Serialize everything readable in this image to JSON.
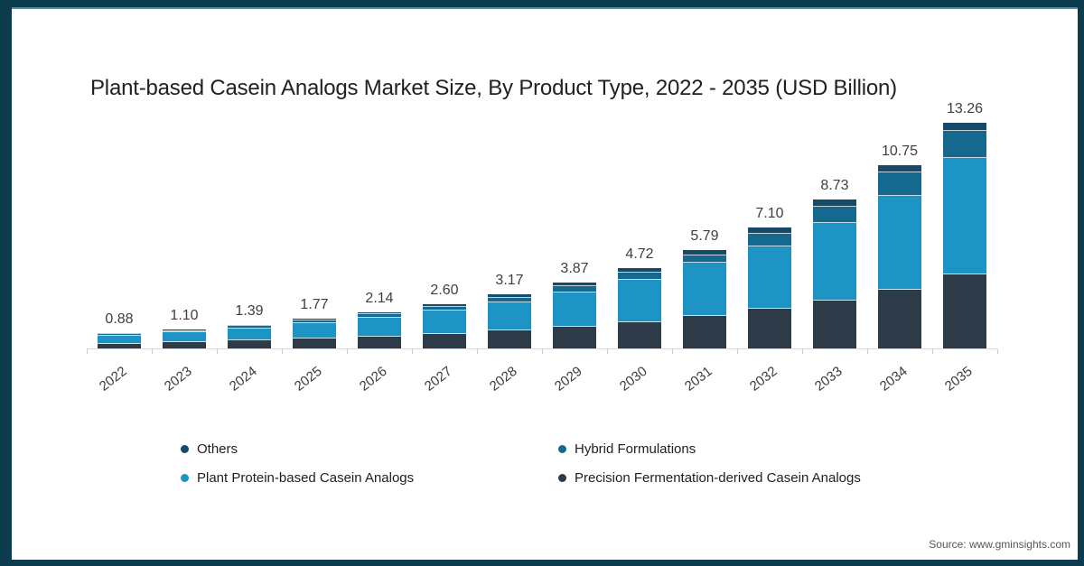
{
  "title": "Plant-based Casein Analogs Market Size, By Product Type, 2022 - 2035 (USD Billion)",
  "source": {
    "label": "Source: www.gminsights.com"
  },
  "frame": {
    "border_color": "#0e3c4f",
    "background": "#ffffff"
  },
  "legend": [
    {
      "label": "Others",
      "color": "#154a68"
    },
    {
      "label": "Hybrid Formulations",
      "color": "#15698f"
    },
    {
      "label": "Plant Protein-based Casein Analogs",
      "color": "#1d94c4"
    },
    {
      "label": "Precision Fermentation-derived Casein Analogs",
      "color": "#2d3a47"
    }
  ],
  "chart_data": {
    "type": "bar",
    "stacked": true,
    "title": "Plant-based Casein Analogs Market Size, By Product Type, 2022 - 2035 (USD Billion)",
    "xlabel": "",
    "ylabel": "USD Billion",
    "ylim": [
      0,
      14.1
    ],
    "grid": false,
    "legend_position": "bottom",
    "categories": [
      "2022",
      "2023",
      "2024",
      "2025",
      "2026",
      "2027",
      "2028",
      "2029",
      "2030",
      "2031",
      "2032",
      "2033",
      "2034",
      "2035"
    ],
    "totals": [
      0.88,
      1.1,
      1.39,
      1.77,
      2.14,
      2.6,
      3.17,
      3.87,
      4.72,
      5.79,
      7.1,
      8.73,
      10.75,
      13.26
    ],
    "value_labels": [
      "0.88",
      "1.10",
      "1.39",
      "1.77",
      "2.14",
      "2.60",
      "3.17",
      "3.87",
      "4.72",
      "5.79",
      "7.10",
      "8.73",
      "10.75",
      "13.26"
    ],
    "segment_values_estimated": true,
    "series": [
      {
        "name": "Precision Fermentation-derived Casein Analogs",
        "color": "#2d3a47",
        "values": [
          0.29,
          0.36,
          0.46,
          0.58,
          0.7,
          0.85,
          1.04,
          1.26,
          1.55,
          1.9,
          2.33,
          2.83,
          3.45,
          4.35
        ]
      },
      {
        "name": "Plant Protein-based Casein Analogs",
        "color": "#1d94c4",
        "values": [
          0.47,
          0.58,
          0.73,
          0.93,
          1.13,
          1.37,
          1.67,
          2.04,
          2.49,
          3.14,
          3.66,
          4.57,
          5.53,
          6.87
        ]
      },
      {
        "name": "Hybrid Formulations",
        "color": "#15698f",
        "values": [
          0.07,
          0.09,
          0.11,
          0.15,
          0.18,
          0.22,
          0.27,
          0.34,
          0.41,
          0.45,
          0.76,
          0.92,
          1.35,
          1.59
        ]
      },
      {
        "name": "Others",
        "color": "#154a68",
        "values": [
          0.05,
          0.07,
          0.09,
          0.11,
          0.13,
          0.16,
          0.19,
          0.23,
          0.27,
          0.3,
          0.35,
          0.41,
          0.42,
          0.45
        ]
      }
    ]
  }
}
